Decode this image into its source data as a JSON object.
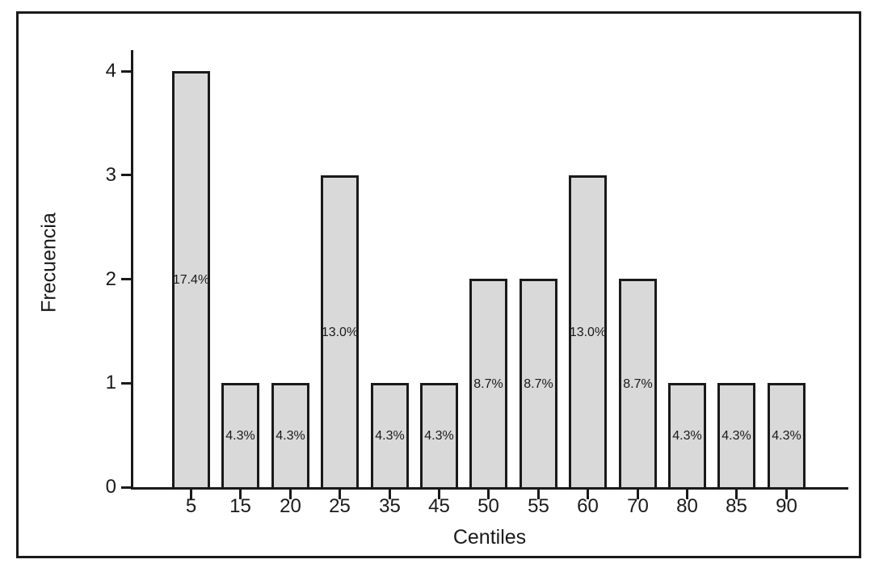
{
  "figure": {
    "background": "#ffffff",
    "frame_color": "#1a1a1a"
  },
  "chart_data": {
    "type": "bar",
    "title": "",
    "xlabel": "Centiles",
    "ylabel": "Frecuencia",
    "categories": [
      "5",
      "15",
      "20",
      "25",
      "35",
      "45",
      "50",
      "55",
      "60",
      "70",
      "80",
      "85",
      "90"
    ],
    "values": [
      4,
      1,
      1,
      3,
      1,
      1,
      2,
      2,
      3,
      2,
      1,
      1,
      1
    ],
    "bar_labels": [
      "17.4%",
      "4.3%",
      "4.3%",
      "13.0%",
      "4.3%",
      "4.3%",
      "8.7%",
      "8.7%",
      "13.0%",
      "8.7%",
      "4.3%",
      "4.3%",
      "4.3%"
    ],
    "yticks": [
      0,
      1,
      2,
      3,
      4
    ],
    "ylim": [
      0,
      4
    ],
    "grid": false,
    "legend": null,
    "bar_color": "#d9d9d9",
    "bar_border_color": "#1a1a1a",
    "axis_color": "#1a1a1a",
    "label_color": "#1a1a1a"
  }
}
